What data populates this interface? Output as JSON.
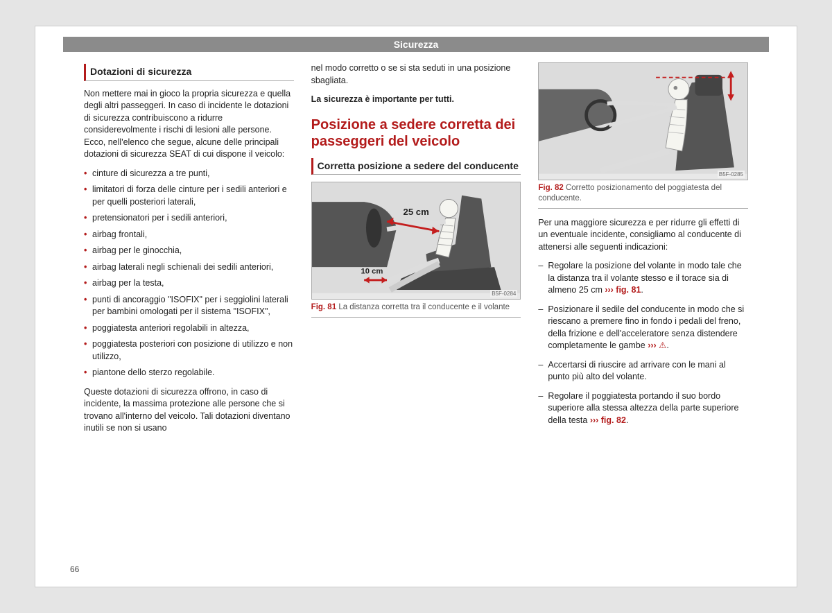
{
  "header": "Sicurezza",
  "pageNumber": "66",
  "col1": {
    "title": "Dotazioni di sicurezza",
    "intro": "Non mettere mai in gioco la propria sicurezza e quella degli altri passeggeri. In caso di incidente le dotazioni di sicurezza contribuiscono a ridurre considerevolmente i rischi di lesioni alle persone. Ecco, nell'elenco che segue, alcune delle principali dotazioni di sicurezza SEAT di cui dispone il veicolo:",
    "bullets": [
      "cinture di sicurezza a tre punti,",
      "limitatori di forza delle cinture per i sedili anteriori e per quelli posteriori laterali,",
      "pretensionatori per i sedili anteriori,",
      "airbag frontali,",
      "airbag per le ginocchia,",
      "airbag laterali negli schienali dei sedili anteriori,",
      "airbag per la testa,",
      "punti di ancoraggio \"ISOFIX\" per i seggiolini laterali per bambini omologati per il sistema \"ISOFIX\",",
      "poggiatesta anteriori regolabili in altezza,",
      "poggiatesta posteriori con posizione di utilizzo e non utilizzo,",
      "piantone dello sterzo regolabile."
    ],
    "outro": "Queste dotazioni di sicurezza offrono, in caso di incidente, la massima protezione alle persone che si trovano all'interno del veicolo. Tali dotazioni diventano inutili se non si usano"
  },
  "col2": {
    "continuation": "nel modo corretto o se si sta seduti in una posizione sbagliata.",
    "boldLine": "La sicurezza è importante per tutti.",
    "h2": "Posizione a sedere corretta dei passeggeri del veicolo",
    "subTitle": "Corretta posizione a sedere del conducente",
    "fig81": {
      "num": "Fig. 81",
      "text": "La distanza corretta tra il conducente e il volante",
      "code": "B5F-0284",
      "dist1": "25 cm",
      "dist2": "10 cm"
    }
  },
  "col3": {
    "fig82": {
      "num": "Fig. 82",
      "text": "Corretto posizionamento del poggiatesta del conducente.",
      "code": "B5F-0285"
    },
    "intro": "Per una maggiore sicurezza e per ridurre gli effetti di un eventuale incidente, consigliamo al conducente di attenersi alle seguenti indicazioni:",
    "items": [
      {
        "text": "Regolare la posizione del volante in modo tale che la distanza tra il volante stesso e il torace sia di almeno 25 cm ",
        "ref": "››› fig. 81",
        "suffix": "."
      },
      {
        "text": "Posizionare il sedile del conducente in modo che si riescano a premere fino in fondo i pedali del freno, della frizione e dell'acceleratore senza distendere completamente le gambe ",
        "ref": "››› ",
        "warn": "⚠",
        "suffix": "."
      },
      {
        "text": "Accertarsi di riuscire ad arrivare con le mani al punto più alto del volante.",
        "ref": "",
        "suffix": ""
      },
      {
        "text": "Regolare il poggiatesta portando il suo bordo superiore alla stessa altezza della parte superiore della testa ",
        "ref": "››› fig. 82",
        "suffix": "."
      }
    ]
  }
}
